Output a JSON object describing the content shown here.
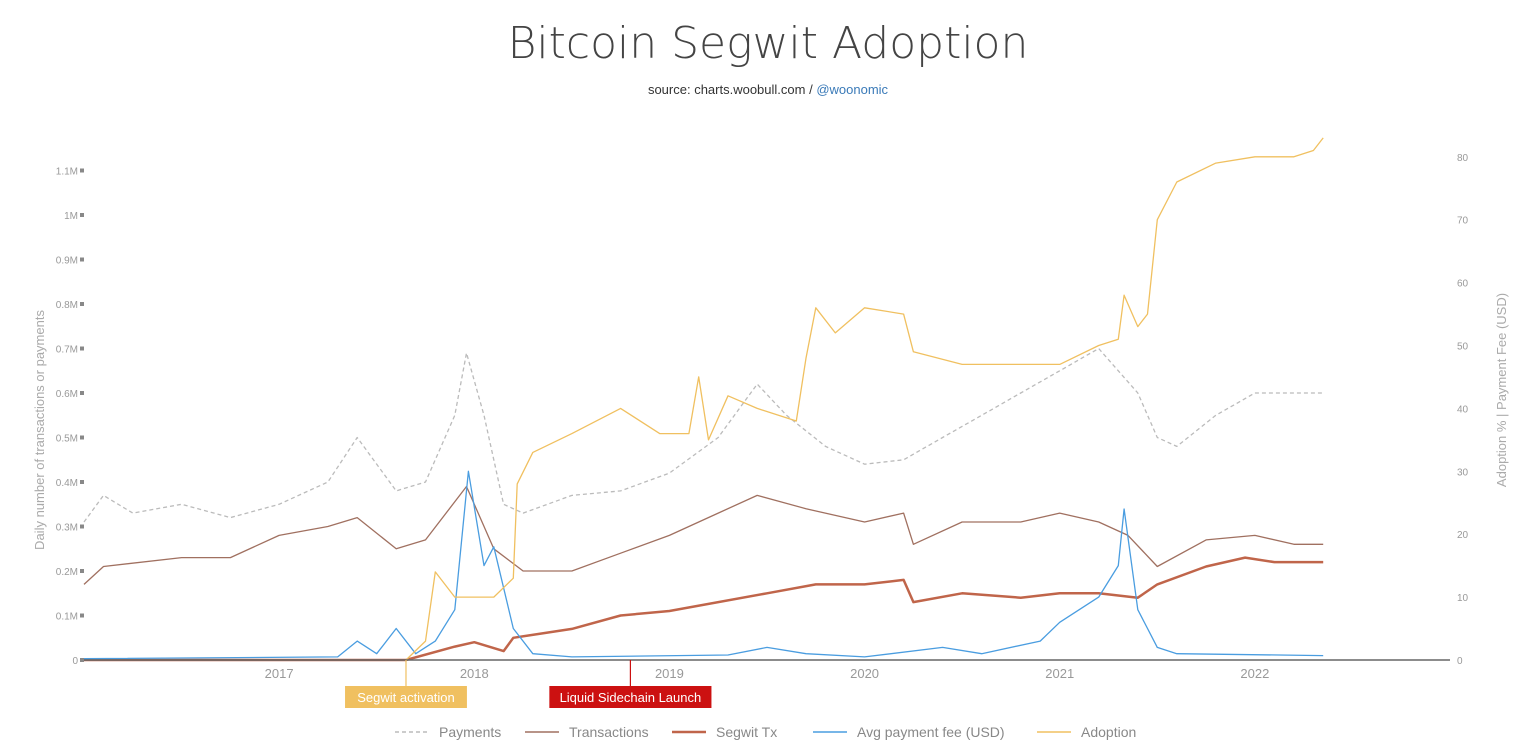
{
  "header": {
    "title": "Bitcoin Segwit Adoption",
    "source_prefix": "source: charts.woobull.com / ",
    "source_link": "@woonomic"
  },
  "chart_data": {
    "type": "line",
    "title": "Bitcoin Segwit Adoption",
    "subtitle": "source: charts.woobull.com / @woonomic",
    "ylabel_left": "Daily number of transactions or payments",
    "ylabel_right": "Adoption % | Payment Fee (USD)",
    "xlim": [
      2016.0,
      2023.0
    ],
    "ylim_left": [
      0,
      1.1
    ],
    "ylim_right": [
      0,
      80
    ],
    "x_ticks": [
      "2017",
      "2018",
      "2019",
      "2020",
      "2021",
      "2022"
    ],
    "y_ticks_left": [
      "0",
      "0.1M",
      "0.2M",
      "0.3M",
      "0.4M",
      "0.5M",
      "0.6M",
      "0.7M",
      "0.8M",
      "0.9M",
      "1M",
      "1.1M"
    ],
    "y_ticks_right": [
      "0",
      "10",
      "20",
      "30",
      "40",
      "50",
      "60",
      "70",
      "80"
    ],
    "legend_position": "bottom",
    "series": [
      {
        "name": "Payments",
        "axis": "left",
        "unit": "M",
        "color": "#bbbbbb",
        "dash": true,
        "x": [
          2016.0,
          2016.1,
          2016.25,
          2016.5,
          2016.75,
          2017.0,
          2017.25,
          2017.4,
          2017.6,
          2017.75,
          2017.9,
          2017.96,
          2018.05,
          2018.15,
          2018.25,
          2018.5,
          2018.75,
          2019.0,
          2019.25,
          2019.45,
          2019.6,
          2019.8,
          2020.0,
          2020.2,
          2020.4,
          2020.6,
          2020.8,
          2021.0,
          2021.2,
          2021.4,
          2021.5,
          2021.6,
          2021.8,
          2022.0,
          2022.2,
          2022.35
        ],
        "y": [
          0.31,
          0.37,
          0.33,
          0.35,
          0.32,
          0.35,
          0.4,
          0.5,
          0.38,
          0.4,
          0.55,
          0.69,
          0.55,
          0.35,
          0.33,
          0.37,
          0.38,
          0.42,
          0.5,
          0.62,
          0.55,
          0.48,
          0.44,
          0.45,
          0.5,
          0.55,
          0.6,
          0.65,
          0.7,
          0.6,
          0.5,
          0.48,
          0.55,
          0.6,
          0.6,
          0.6
        ]
      },
      {
        "name": "Transactions",
        "axis": "left",
        "unit": "M",
        "color": "#a07060",
        "x": [
          2016.0,
          2016.1,
          2016.5,
          2016.75,
          2017.0,
          2017.25,
          2017.4,
          2017.6,
          2017.75,
          2017.96,
          2018.1,
          2018.25,
          2018.5,
          2018.75,
          2019.0,
          2019.25,
          2019.45,
          2019.7,
          2020.0,
          2020.2,
          2020.25,
          2020.5,
          2020.8,
          2021.0,
          2021.2,
          2021.35,
          2021.5,
          2021.75,
          2022.0,
          2022.2,
          2022.35
        ],
        "y": [
          0.17,
          0.21,
          0.23,
          0.23,
          0.28,
          0.3,
          0.32,
          0.25,
          0.27,
          0.39,
          0.25,
          0.2,
          0.2,
          0.24,
          0.28,
          0.33,
          0.37,
          0.34,
          0.31,
          0.33,
          0.26,
          0.31,
          0.31,
          0.33,
          0.31,
          0.28,
          0.21,
          0.27,
          0.28,
          0.26,
          0.26
        ]
      },
      {
        "name": "Segwit Tx",
        "axis": "left",
        "unit": "M",
        "color": "#c0654a",
        "width": 2.5,
        "x": [
          2016.0,
          2017.65,
          2017.9,
          2018.0,
          2018.15,
          2018.2,
          2018.5,
          2018.75,
          2019.0,
          2019.5,
          2019.75,
          2020.0,
          2020.2,
          2020.25,
          2020.5,
          2020.8,
          2021.0,
          2021.2,
          2021.4,
          2021.5,
          2021.75,
          2021.95,
          2022.1,
          2022.35
        ],
        "y": [
          0,
          0,
          0.03,
          0.04,
          0.02,
          0.05,
          0.07,
          0.1,
          0.11,
          0.15,
          0.17,
          0.17,
          0.18,
          0.13,
          0.15,
          0.14,
          0.15,
          0.15,
          0.14,
          0.17,
          0.21,
          0.23,
          0.22,
          0.22
        ]
      },
      {
        "name": "Avg payment fee (USD)",
        "axis": "right",
        "unit": "USD",
        "color": "#4a9de0",
        "x": [
          2016.0,
          2017.3,
          2017.4,
          2017.5,
          2017.6,
          2017.7,
          2017.8,
          2017.9,
          2017.97,
          2018.05,
          2018.1,
          2018.2,
          2018.3,
          2018.5,
          2019.3,
          2019.5,
          2019.7,
          2020.0,
          2020.4,
          2020.6,
          2020.9,
          2021.0,
          2021.1,
          2021.2,
          2021.3,
          2021.33,
          2021.4,
          2021.5,
          2021.6,
          2022.35
        ],
        "y": [
          0.2,
          0.5,
          3,
          1,
          5,
          1,
          3,
          8,
          30,
          15,
          18,
          5,
          1,
          0.5,
          0.8,
          2,
          1,
          0.5,
          2,
          1,
          3,
          6,
          8,
          10,
          15,
          24,
          8,
          2,
          1,
          0.7
        ]
      },
      {
        "name": "Adoption",
        "axis": "right",
        "unit": "%",
        "color": "#f0c060",
        "x": [
          2017.65,
          2017.75,
          2017.8,
          2017.9,
          2018.1,
          2018.2,
          2018.22,
          2018.3,
          2018.5,
          2018.75,
          2018.95,
          2019.1,
          2019.15,
          2019.2,
          2019.3,
          2019.45,
          2019.65,
          2019.7,
          2019.75,
          2019.85,
          2020.0,
          2020.2,
          2020.25,
          2020.5,
          2020.7,
          2021.0,
          2021.2,
          2021.3,
          2021.33,
          2021.4,
          2021.45,
          2021.5,
          2021.6,
          2021.8,
          2022.0,
          2022.2,
          2022.3,
          2022.35
        ],
        "y": [
          0,
          3,
          14,
          10,
          10,
          13,
          28,
          33,
          36,
          40,
          36,
          36,
          45,
          35,
          42,
          40,
          38,
          48,
          56,
          52,
          56,
          55,
          49,
          47,
          47,
          47,
          50,
          51,
          58,
          53,
          55,
          70,
          76,
          79,
          80,
          80,
          81,
          83
        ]
      }
    ],
    "annotations": [
      {
        "label": "Segwit activation",
        "x": 2017.65,
        "color": "#f0c060"
      },
      {
        "label": "Liquid Sidechain Launch",
        "x": 2018.8,
        "color": "#cc1111"
      }
    ]
  }
}
